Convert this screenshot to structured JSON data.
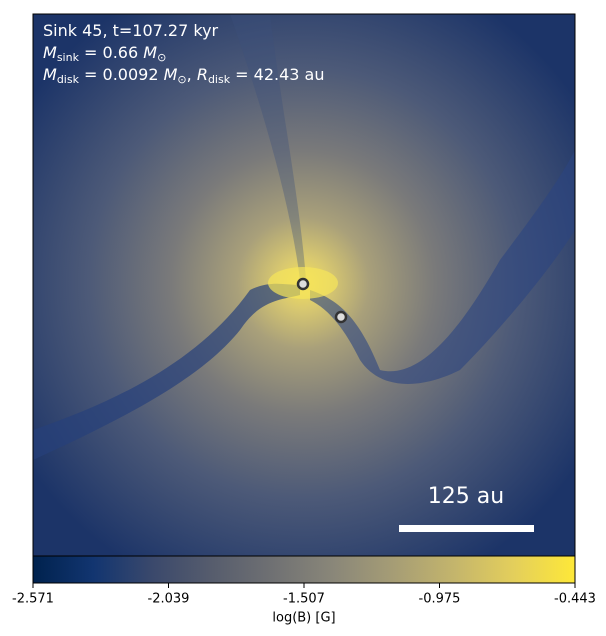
{
  "chart_data": {
    "type": "image",
    "colormap": "cividis",
    "annotations": [
      [
        {
          "t": "Sink 45, t=107.27 kyr",
          "style": "normal"
        }
      ],
      [
        {
          "t": "M",
          "style": "italic"
        },
        {
          "t": "sink",
          "style": "sub"
        },
        {
          "t": " = 0.66 ",
          "style": "normal"
        },
        {
          "t": "M",
          "style": "italic"
        },
        {
          "t": "⊙",
          "style": "sub"
        }
      ],
      [
        {
          "t": "M",
          "style": "italic"
        },
        {
          "t": "disk",
          "style": "sub"
        },
        {
          "t": " = 0.0092 ",
          "style": "normal"
        },
        {
          "t": "M",
          "style": "italic"
        },
        {
          "t": "⊙",
          "style": "sub"
        },
        {
          "t": ", ",
          "style": "normal"
        },
        {
          "t": "R",
          "style": "italic"
        },
        {
          "t": "disk",
          "style": "sub"
        },
        {
          "t": " = 42.43 au",
          "style": "normal"
        }
      ]
    ],
    "scale_bar_label": "125 au",
    "colorbar": {
      "label": "log(B) [G]",
      "lim": [
        -2.571,
        -0.443
      ],
      "ticks": [
        -2.571,
        -2.039,
        -1.507,
        -0.975,
        -0.443
      ]
    }
  }
}
